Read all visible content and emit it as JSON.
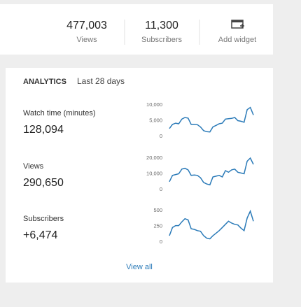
{
  "summary": {
    "stats": [
      {
        "value": "477,003",
        "label": "Views"
      },
      {
        "value": "11,300",
        "label": "Subscribers"
      }
    ],
    "add_widget": "Add widget"
  },
  "analytics": {
    "title": "ANALYTICS",
    "period": "Last 28 days",
    "metrics": [
      {
        "label": "Watch time (minutes)",
        "value": "128,094",
        "chart": {
          "type": "line",
          "color": "#2a7ab8",
          "ylim": [
            0,
            10000
          ],
          "yticks": [
            0,
            {
              "value": 5000,
              "label": "5,000"
            },
            {
              "value": 10000,
              "label": "10,000"
            }
          ],
          "values": [
            2500,
            3800,
            4200,
            4000,
            5500,
            6000,
            5800,
            3800,
            3800,
            3700,
            3000,
            1800,
            1500,
            1400,
            3000,
            3500,
            4000,
            4200,
            5500,
            5600,
            5700,
            6000,
            5000,
            4800,
            4500,
            8500,
            9200,
            6800
          ]
        }
      },
      {
        "label": "Views",
        "value": "290,650",
        "chart": {
          "type": "line",
          "color": "#2a7ab8",
          "ylim": [
            0,
            20000
          ],
          "yticks": [
            0,
            {
              "value": 10000,
              "label": "10,000"
            },
            {
              "value": 20000,
              "label": "20,000"
            }
          ],
          "values": [
            5000,
            9000,
            9500,
            10000,
            13000,
            13500,
            12500,
            9000,
            9200,
            9000,
            7500,
            4500,
            3500,
            3000,
            8000,
            8500,
            9000,
            8000,
            12000,
            11000,
            12500,
            13000,
            11000,
            10500,
            10000,
            18000,
            20000,
            16000
          ]
        }
      },
      {
        "label": "Subscribers",
        "value": "+6,474",
        "chart": {
          "type": "line",
          "color": "#2a7ab8",
          "ylim": [
            0,
            500
          ],
          "yticks": [
            0,
            250,
            500
          ],
          "values": [
            100,
            230,
            260,
            260,
            320,
            370,
            350,
            210,
            200,
            180,
            170,
            100,
            60,
            50,
            100,
            140,
            180,
            230,
            280,
            330,
            300,
            280,
            270,
            220,
            180,
            380,
            490,
            330
          ]
        }
      }
    ],
    "view_all": "View all"
  }
}
